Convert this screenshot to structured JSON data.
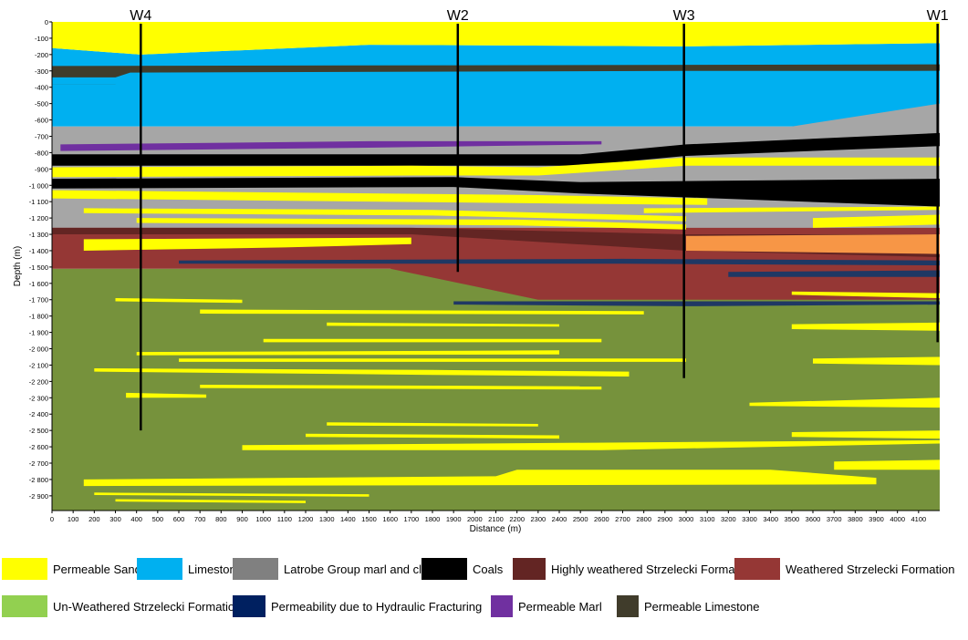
{
  "wells": [
    {
      "name": "W4",
      "distance": 420,
      "bottom": 2500
    },
    {
      "name": "W2",
      "distance": 1920,
      "bottom": 1530
    },
    {
      "name": "W3",
      "distance": 2990,
      "bottom": 2180
    },
    {
      "name": "W1",
      "distance": 4190,
      "bottom": 1960
    }
  ],
  "axes": {
    "xlabel": "Distance (m)",
    "ylabel": "Depth (m)",
    "xlim": [
      0,
      4200
    ],
    "ylim": [
      0,
      2990
    ],
    "x_ticks": [
      "0",
      "100",
      "200",
      "300",
      "400",
      "500",
      "600",
      "700",
      "800",
      "900",
      "1000",
      "1100",
      "1200",
      "1300",
      "1400",
      "1500",
      "1600",
      "1700",
      "1800",
      "1900",
      "2000",
      "2100",
      "2200",
      "2300",
      "2400",
      "2500",
      "2600",
      "2700",
      "2800",
      "2900",
      "3000",
      "3100",
      "3200",
      "3300",
      "3400",
      "3500",
      "3600",
      "3700",
      "3800",
      "3900",
      "4000",
      "4100"
    ],
    "y_ticks": [
      "0",
      "-100",
      "-200",
      "-300",
      "-400",
      "-500",
      "-600",
      "-700",
      "-800",
      "-900",
      "-1 000",
      "-1 100",
      "-1 200",
      "-1 300",
      "-1 400",
      "-1 500",
      "-1 600",
      "-1 700",
      "-1 800",
      "-1 900",
      "-2 000",
      "-2 100",
      "-2 200",
      "-2 300",
      "-2 400",
      "-2 500",
      "-2 600",
      "-2 700",
      "-2 800",
      "-2 900"
    ]
  },
  "legend": [
    {
      "label": "Permeable Sandstones",
      "color": "#ffff00"
    },
    {
      "label": "Limestone",
      "color": "#00b0f0"
    },
    {
      "label": "Latrobe Group marl and clays",
      "color": "#808080"
    },
    {
      "label": "Coals",
      "color": "#000000"
    },
    {
      "label": "Highly weathered Strzelecki Formation",
      "color": "#632523"
    },
    {
      "label": "Weathered Strzelecki Formation",
      "color": "#953735"
    },
    {
      "label": "Un-Weathered Strzelecki Formation",
      "color": "#92d050"
    },
    {
      "label": "Permeability due to Hydraulic Fracturing",
      "color": "#002060"
    },
    {
      "label": "Permeable Marl",
      "color": "#7030a0"
    },
    {
      "label": "Permeable Limestone",
      "color": "#403c2b"
    }
  ],
  "colors": {
    "sandstone": "#ffff00",
    "limestone": "#00b0f0",
    "marl": "#a6a6a6",
    "coal": "#000000",
    "highly_weathered": "#632523",
    "weathered": "#953735",
    "unweathered": "#76923c",
    "fracturing": "#1f3864",
    "perm_marl": "#7030a0",
    "perm_limestone": "#403c2b",
    "orange": "#f79646"
  },
  "layers": [
    {
      "type": "limestone",
      "top": [
        [
          0,
          160
        ],
        [
          420,
          200
        ],
        [
          1500,
          140
        ],
        [
          2990,
          150
        ],
        [
          4200,
          130
        ]
      ],
      "base": [
        [
          0,
          640
        ],
        [
          4200,
          640
        ]
      ]
    },
    {
      "type": "marl",
      "top": [
        [
          0,
          640
        ],
        [
          3500,
          640
        ],
        [
          4200,
          500
        ]
      ],
      "base": [
        [
          0,
          1290
        ],
        [
          4200,
          1290
        ]
      ]
    },
    {
      "type": "unweathered",
      "top": [
        [
          0,
          1510
        ],
        [
          4200,
          1510
        ]
      ],
      "base": [
        [
          0,
          2990
        ],
        [
          4200,
          2990
        ]
      ]
    },
    {
      "type": "weathered",
      "top": [
        [
          0,
          1260
        ],
        [
          4200,
          1260
        ]
      ],
      "base": [
        [
          0,
          1510
        ],
        [
          1600,
          1510
        ],
        [
          2300,
          1700
        ],
        [
          4200,
          1700
        ]
      ]
    },
    {
      "type": "sandstone",
      "top": [
        [
          0,
          0
        ],
        [
          4200,
          0
        ]
      ],
      "base": [
        [
          0,
          160
        ],
        [
          420,
          200
        ],
        [
          1500,
          140
        ],
        [
          2990,
          150
        ],
        [
          4200,
          130
        ]
      ]
    },
    {
      "type": "perm_limestone",
      "top": [
        [
          0,
          270
        ],
        [
          4200,
          260
        ]
      ],
      "base": [
        [
          0,
          380
        ],
        [
          300,
          380
        ],
        [
          370,
          330
        ],
        [
          2990,
          310
        ],
        [
          4200,
          300
        ]
      ]
    },
    {
      "type": "limestone",
      "top": [
        [
          0,
          340
        ],
        [
          300,
          340
        ],
        [
          370,
          310
        ],
        [
          2990,
          300
        ],
        [
          4200,
          300
        ]
      ],
      "base": [
        [
          0,
          380
        ],
        [
          4200,
          380
        ]
      ]
    },
    {
      "type": "perm_marl",
      "top": [
        [
          40,
          750
        ],
        [
          1500,
          730
        ],
        [
          2600,
          730
        ]
      ],
      "base": [
        [
          40,
          790
        ],
        [
          1500,
          770
        ],
        [
          2600,
          750
        ]
      ]
    },
    {
      "type": "coal",
      "top": [
        [
          0,
          810
        ],
        [
          2500,
          810
        ],
        [
          3000,
          750
        ],
        [
          4200,
          680
        ]
      ],
      "base": [
        [
          0,
          880
        ],
        [
          2500,
          880
        ],
        [
          3000,
          820
        ],
        [
          4200,
          760
        ]
      ]
    },
    {
      "type": "sandstone",
      "top": [
        [
          0,
          890
        ],
        [
          1700,
          880
        ],
        [
          2300,
          890
        ],
        [
          3000,
          830
        ],
        [
          4200,
          830
        ]
      ],
      "base": [
        [
          0,
          950
        ],
        [
          1700,
          940
        ],
        [
          2300,
          940
        ],
        [
          3000,
          880
        ],
        [
          4200,
          880
        ]
      ]
    },
    {
      "type": "coal",
      "top": [
        [
          0,
          960
        ],
        [
          1900,
          950
        ],
        [
          2500,
          980
        ],
        [
          4200,
          960
        ]
      ],
      "base": [
        [
          0,
          1020
        ],
        [
          1900,
          1010
        ],
        [
          2500,
          1050
        ],
        [
          4200,
          1130
        ]
      ]
    },
    {
      "type": "sandstone",
      "top": [
        [
          0,
          1030
        ],
        [
          2300,
          1060
        ],
        [
          3100,
          1080
        ]
      ],
      "base": [
        [
          0,
          1080
        ],
        [
          2300,
          1110
        ],
        [
          3100,
          1120
        ]
      ]
    },
    {
      "type": "sandstone",
      "top": [
        [
          150,
          1140
        ],
        [
          1800,
          1150
        ],
        [
          3000,
          1190
        ]
      ],
      "base": [
        [
          150,
          1170
        ],
        [
          1800,
          1185
        ],
        [
          3000,
          1220
        ]
      ]
    },
    {
      "type": "sandstone",
      "top": [
        [
          400,
          1200
        ],
        [
          2200,
          1210
        ],
        [
          3000,
          1240
        ]
      ],
      "base": [
        [
          400,
          1230
        ],
        [
          2200,
          1245
        ],
        [
          3000,
          1270
        ]
      ]
    },
    {
      "type": "sandstone",
      "top": [
        [
          3600,
          1200
        ],
        [
          4200,
          1180
        ]
      ],
      "base": [
        [
          3600,
          1260
        ],
        [
          4200,
          1240
        ]
      ]
    },
    {
      "type": "sandstone",
      "top": [
        [
          2800,
          1140
        ],
        [
          4200,
          1130
        ]
      ],
      "base": [
        [
          2800,
          1170
        ],
        [
          4200,
          1150
        ]
      ]
    },
    {
      "type": "highly_weathered",
      "top": [
        [
          0,
          1260
        ],
        [
          1700,
          1260
        ],
        [
          3000,
          1300
        ],
        [
          4200,
          1300
        ]
      ],
      "base": [
        [
          0,
          1300
        ],
        [
          1700,
          1300
        ],
        [
          3000,
          1400
        ],
        [
          4200,
          1440
        ]
      ]
    },
    {
      "type": "orange",
      "top": [
        [
          3000,
          1310
        ],
        [
          4200,
          1300
        ]
      ],
      "base": [
        [
          3000,
          1400
        ],
        [
          4200,
          1420
        ]
      ]
    },
    {
      "type": "sandstone",
      "top": [
        [
          150,
          1330
        ],
        [
          1700,
          1320
        ]
      ],
      "base": [
        [
          150,
          1400
        ],
        [
          1100,
          1380
        ],
        [
          1700,
          1360
        ]
      ]
    },
    {
      "type": "fracturing",
      "top": [
        [
          600,
          1460
        ],
        [
          2700,
          1450
        ],
        [
          4200,
          1460
        ]
      ],
      "base": [
        [
          600,
          1480
        ],
        [
          2700,
          1480
        ],
        [
          4200,
          1490
        ]
      ]
    },
    {
      "type": "fracturing",
      "top": [
        [
          3200,
          1530
        ],
        [
          4200,
          1520
        ]
      ],
      "base": [
        [
          3200,
          1560
        ],
        [
          4200,
          1560
        ]
      ]
    },
    {
      "type": "fracturing",
      "top": [
        [
          1900,
          1710
        ],
        [
          3000,
          1710
        ],
        [
          4200,
          1710
        ]
      ],
      "base": [
        [
          1900,
          1730
        ],
        [
          3000,
          1740
        ],
        [
          4200,
          1730
        ]
      ]
    },
    {
      "type": "sandstone",
      "top": [
        [
          3500,
          1650
        ],
        [
          4200,
          1660
        ]
      ],
      "base": [
        [
          3500,
          1670
        ],
        [
          4200,
          1690
        ]
      ]
    },
    {
      "type": "sandstone",
      "top": [
        [
          300,
          1690
        ],
        [
          900,
          1700
        ]
      ],
      "base": [
        [
          300,
          1710
        ],
        [
          900,
          1720
        ]
      ]
    },
    {
      "type": "sandstone",
      "top": [
        [
          700,
          1760
        ],
        [
          2800,
          1770
        ]
      ],
      "base": [
        [
          700,
          1785
        ],
        [
          2800,
          1790
        ]
      ]
    },
    {
      "type": "sandstone",
      "top": [
        [
          1300,
          1840
        ],
        [
          2400,
          1850
        ]
      ],
      "base": [
        [
          1300,
          1860
        ],
        [
          2400,
          1865
        ]
      ]
    },
    {
      "type": "sandstone",
      "top": [
        [
          3500,
          1850
        ],
        [
          4200,
          1840
        ]
      ],
      "base": [
        [
          3500,
          1880
        ],
        [
          4200,
          1890
        ]
      ]
    },
    {
      "type": "sandstone",
      "top": [
        [
          1000,
          1940
        ],
        [
          2600,
          1940
        ]
      ],
      "base": [
        [
          1000,
          1960
        ],
        [
          2600,
          1960
        ]
      ]
    },
    {
      "type": "sandstone",
      "top": [
        [
          400,
          2020
        ],
        [
          2400,
          2010
        ]
      ],
      "base": [
        [
          400,
          2040
        ],
        [
          2400,
          2035
        ]
      ]
    },
    {
      "type": "sandstone",
      "top": [
        [
          600,
          2060
        ],
        [
          3000,
          2060
        ]
      ],
      "base": [
        [
          600,
          2080
        ],
        [
          3000,
          2080
        ]
      ]
    },
    {
      "type": "sandstone",
      "top": [
        [
          3600,
          2060
        ],
        [
          4200,
          2050
        ]
      ],
      "base": [
        [
          3600,
          2090
        ],
        [
          4200,
          2100
        ]
      ]
    },
    {
      "type": "sandstone",
      "top": [
        [
          200,
          2120
        ],
        [
          1800,
          2130
        ],
        [
          2730,
          2140
        ]
      ],
      "base": [
        [
          200,
          2140
        ],
        [
          1800,
          2160
        ],
        [
          2730,
          2170
        ]
      ]
    },
    {
      "type": "sandstone",
      "top": [
        [
          700,
          2220
        ],
        [
          2600,
          2230
        ]
      ],
      "base": [
        [
          700,
          2240
        ],
        [
          2600,
          2250
        ]
      ]
    },
    {
      "type": "sandstone",
      "top": [
        [
          350,
          2270
        ],
        [
          730,
          2280
        ]
      ],
      "base": [
        [
          350,
          2300
        ],
        [
          730,
          2300
        ]
      ]
    },
    {
      "type": "sandstone",
      "top": [
        [
          3300,
          2330
        ],
        [
          4200,
          2300
        ]
      ],
      "base": [
        [
          3300,
          2350
        ],
        [
          4200,
          2360
        ]
      ]
    },
    {
      "type": "sandstone",
      "top": [
        [
          1300,
          2450
        ],
        [
          2300,
          2460
        ]
      ],
      "base": [
        [
          1300,
          2470
        ],
        [
          2300,
          2475
        ]
      ]
    },
    {
      "type": "sandstone",
      "top": [
        [
          1200,
          2520
        ],
        [
          2400,
          2530
        ]
      ],
      "base": [
        [
          1200,
          2540
        ],
        [
          2400,
          2550
        ]
      ]
    },
    {
      "type": "sandstone",
      "top": [
        [
          3500,
          2510
        ],
        [
          4200,
          2500
        ]
      ],
      "base": [
        [
          3500,
          2540
        ],
        [
          4200,
          2550
        ]
      ]
    },
    {
      "type": "sandstone",
      "top": [
        [
          900,
          2590
        ],
        [
          4200,
          2560
        ]
      ],
      "base": [
        [
          900,
          2620
        ],
        [
          2600,
          2620
        ],
        [
          4200,
          2580
        ]
      ]
    },
    {
      "type": "sandstone",
      "top": [
        [
          3700,
          2690
        ],
        [
          4200,
          2680
        ]
      ],
      "base": [
        [
          3700,
          2740
        ],
        [
          4200,
          2740
        ]
      ]
    },
    {
      "type": "sandstone",
      "top": [
        [
          150,
          2800
        ],
        [
          2100,
          2780
        ],
        [
          2200,
          2740
        ],
        [
          3400,
          2740
        ],
        [
          3900,
          2790
        ]
      ],
      "base": [
        [
          150,
          2840
        ],
        [
          3900,
          2830
        ]
      ]
    },
    {
      "type": "sandstone",
      "top": [
        [
          200,
          2880
        ],
        [
          1500,
          2890
        ]
      ],
      "base": [
        [
          200,
          2895
        ],
        [
          1500,
          2905
        ]
      ]
    },
    {
      "type": "sandstone",
      "top": [
        [
          300,
          2920
        ],
        [
          1200,
          2930
        ]
      ],
      "base": [
        [
          300,
          2935
        ],
        [
          1200,
          2945
        ]
      ]
    }
  ]
}
